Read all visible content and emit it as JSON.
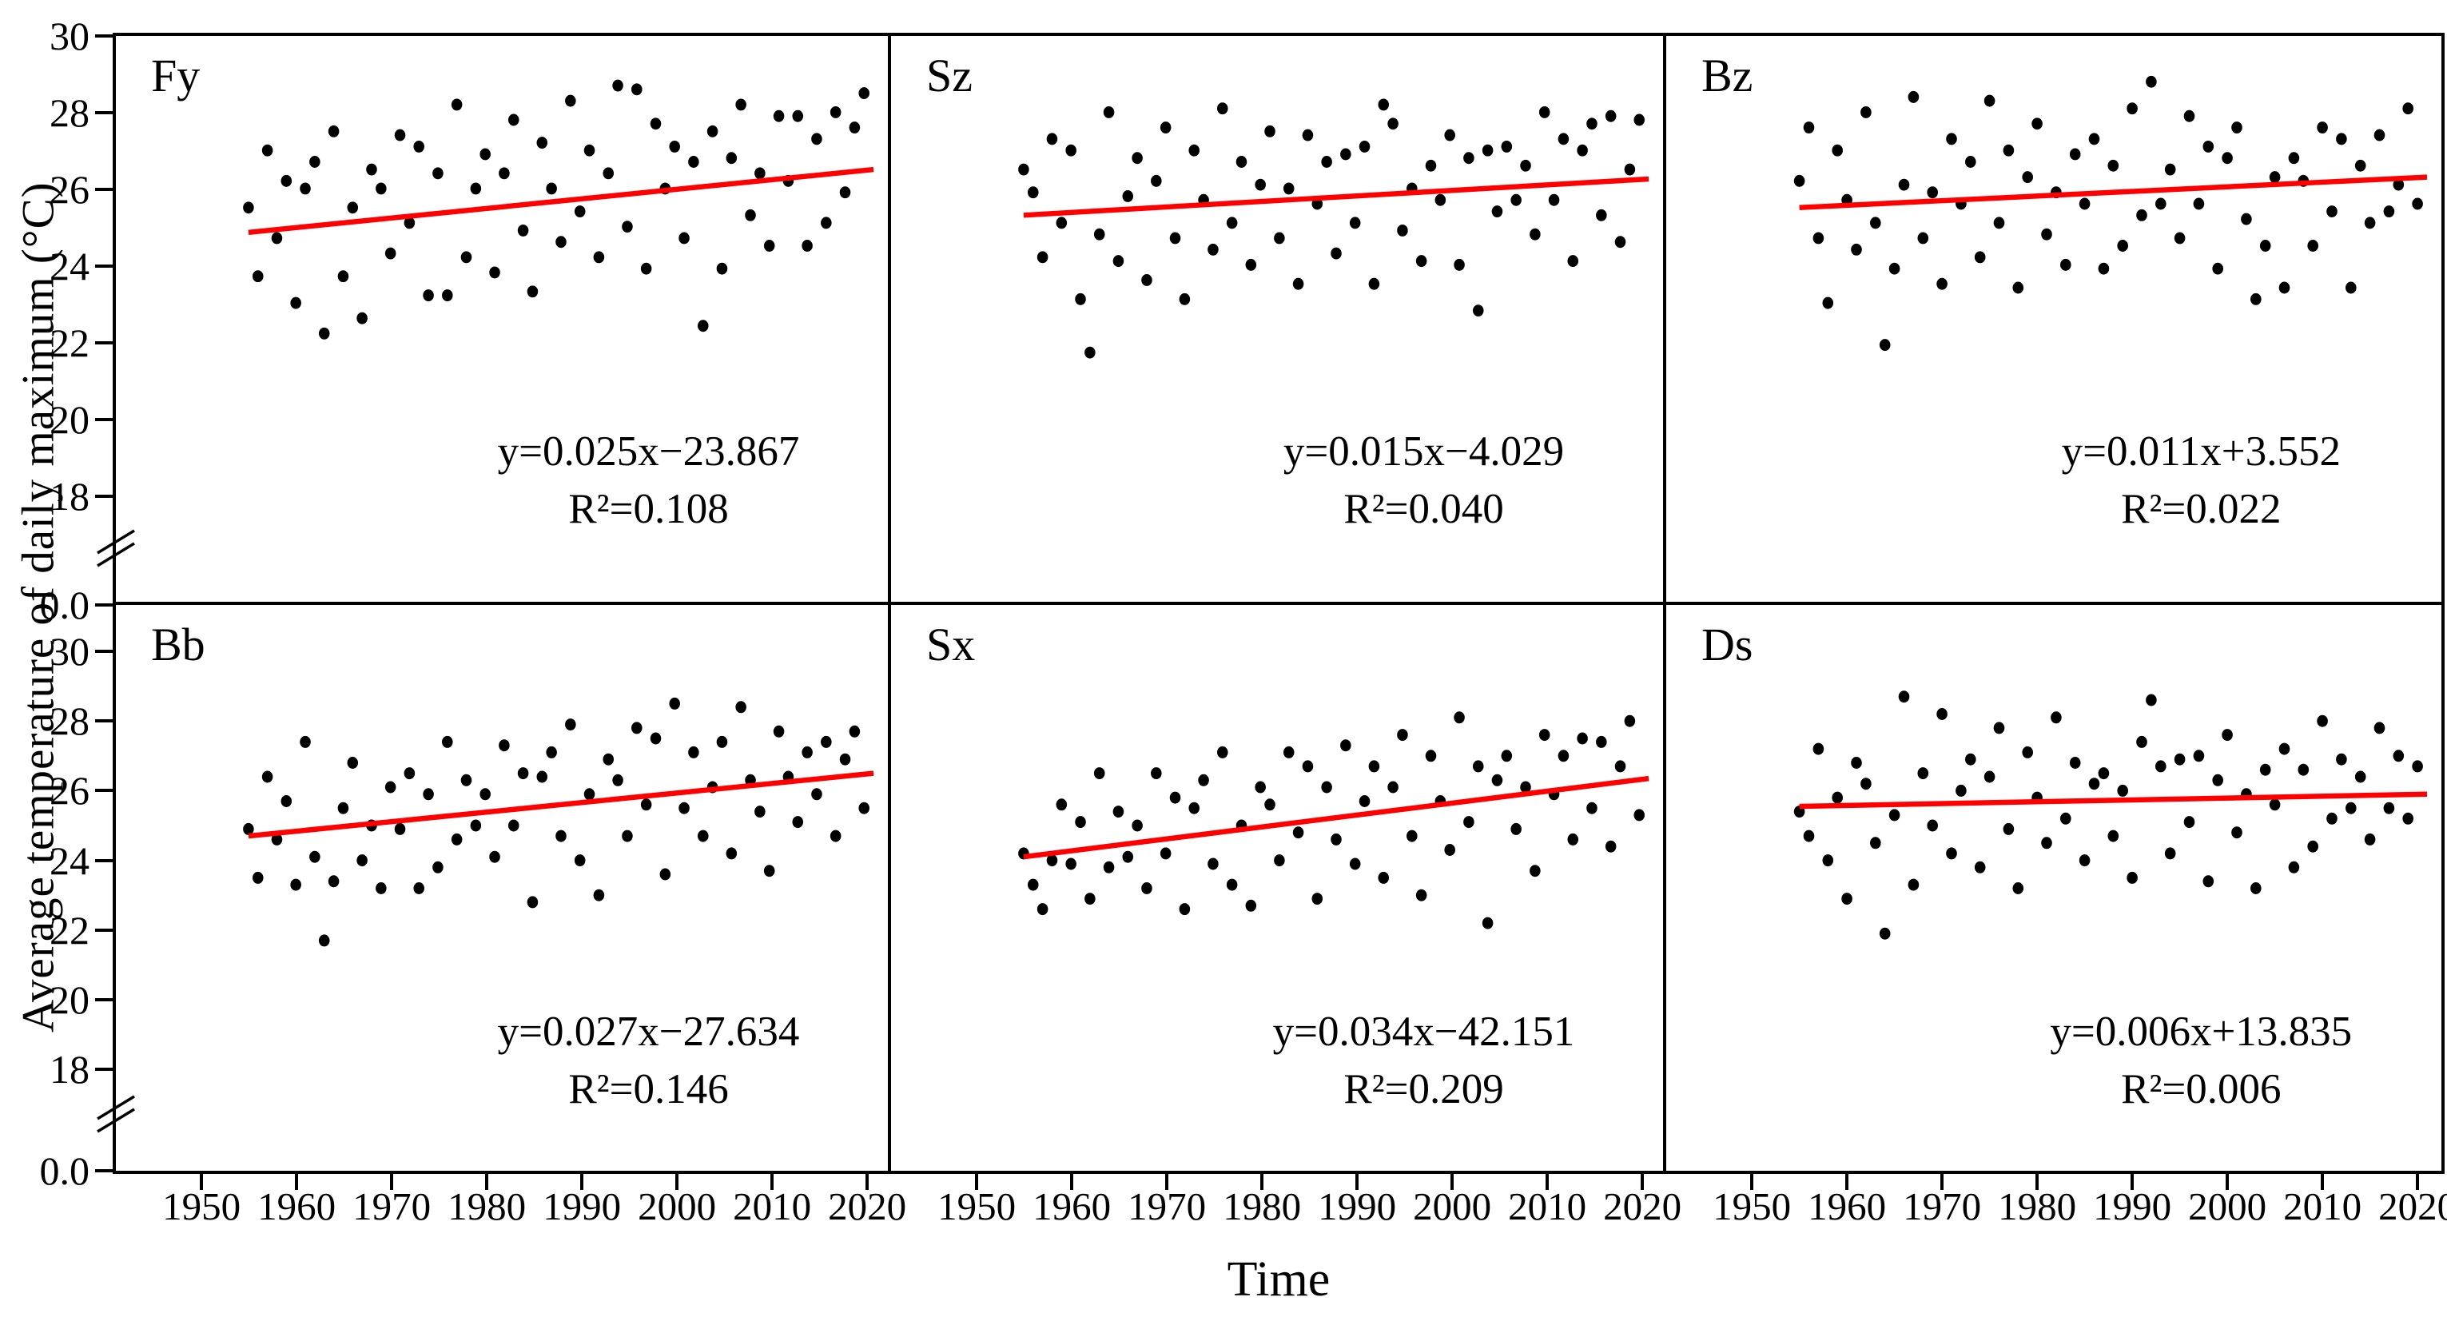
{
  "figure": {
    "y_axis_title": "Average temperature of daily maximum (°C)",
    "x_axis_title": "Time",
    "y_tick_labels": [
      "30",
      "28",
      "26",
      "24",
      "22",
      "20",
      "18"
    ],
    "y_base_label": "0.0",
    "x_tick_labels": [
      "1950",
      "1960",
      "1970",
      "1980",
      "1990",
      "2000",
      "2010",
      "2020"
    ],
    "colors": {
      "trend_line": "#ff0000",
      "data_points": "#000000",
      "axis": "#000000",
      "background": "#ffffff"
    }
  },
  "chart_data": {
    "type": "scatter",
    "layout": "2x3 panel grid, shared axes",
    "xlabel": "Time",
    "ylabel": "Average temperature of daily maximum (°C)",
    "x_ticks": [
      1950,
      1960,
      1970,
      1980,
      1990,
      2000,
      2010,
      2020
    ],
    "y_ticks": [
      30,
      28,
      26,
      24,
      22,
      20,
      18,
      0
    ],
    "y_axis_break": true,
    "y_display_range": [
      18,
      30
    ],
    "x_range": [
      1941,
      2022.5
    ],
    "years": [
      1955,
      1956,
      1957,
      1958,
      1959,
      1960,
      1961,
      1962,
      1963,
      1964,
      1965,
      1966,
      1967,
      1968,
      1969,
      1970,
      1971,
      1972,
      1973,
      1974,
      1975,
      1976,
      1977,
      1978,
      1979,
      1980,
      1981,
      1982,
      1983,
      1984,
      1985,
      1986,
      1987,
      1988,
      1989,
      1990,
      1991,
      1992,
      1993,
      1994,
      1995,
      1996,
      1997,
      1998,
      1999,
      2000,
      2001,
      2002,
      2003,
      2004,
      2005,
      2006,
      2007,
      2008,
      2009,
      2010,
      2011,
      2012,
      2013,
      2014,
      2015,
      2016,
      2017,
      2018,
      2019,
      2020
    ],
    "panels": [
      {
        "label": "Fy",
        "equation": "y=0.025x−23.867",
        "r2": "R²=0.108",
        "slope": 0.025,
        "intercept": -23.867,
        "r2_value": 0.108,
        "trend": {
          "x1": 1955,
          "y1": 24.85,
          "x2": 2021,
          "y2": 26.5
        },
        "values": [
          25.5,
          23.7,
          27.0,
          24.7,
          26.2,
          23.0,
          26.0,
          26.7,
          22.2,
          27.5,
          23.7,
          25.5,
          22.6,
          26.5,
          26.0,
          24.3,
          27.4,
          25.1,
          27.1,
          23.2,
          26.4,
          23.2,
          28.2,
          24.2,
          26.0,
          26.9,
          23.8,
          26.4,
          27.8,
          24.9,
          23.3,
          27.2,
          26.0,
          24.6,
          28.3,
          25.4,
          27.0,
          24.2,
          26.4,
          28.7,
          25.0,
          28.6,
          23.9,
          27.7,
          26.0,
          27.1,
          24.7,
          26.7,
          22.4,
          27.5,
          23.9,
          26.8,
          28.2,
          25.3,
          26.4,
          24.5,
          27.9,
          26.2,
          27.9,
          24.5,
          27.3,
          25.1,
          28.0,
          25.9,
          27.6,
          28.5
        ]
      },
      {
        "label": "Sz",
        "equation": "y=0.015x−4.029",
        "r2": "R²=0.040",
        "slope": 0.015,
        "intercept": -4.029,
        "r2_value": 0.04,
        "trend": {
          "x1": 1955,
          "y1": 25.3,
          "x2": 2021,
          "y2": 26.25
        },
        "values": [
          26.5,
          25.9,
          24.2,
          27.3,
          25.1,
          27.0,
          23.1,
          21.7,
          24.8,
          28.0,
          24.1,
          25.8,
          26.8,
          23.6,
          26.2,
          27.6,
          24.7,
          23.1,
          27.0,
          25.7,
          24.4,
          28.1,
          25.1,
          26.7,
          24.0,
          26.1,
          27.5,
          24.7,
          26.0,
          23.5,
          27.4,
          25.6,
          26.7,
          24.3,
          26.9,
          25.1,
          27.1,
          23.5,
          28.2,
          27.7,
          24.9,
          26.0,
          24.1,
          26.6,
          25.7,
          27.4,
          24.0,
          26.8,
          22.8,
          27.0,
          25.4,
          27.1,
          25.7,
          26.6,
          24.8,
          28.0,
          25.7,
          27.3,
          24.1,
          27.0,
          27.7,
          25.3,
          27.9,
          24.6,
          26.5,
          27.8
        ]
      },
      {
        "label": "Bz",
        "equation": "y=0.011x+3.552",
        "r2": "R²=0.022",
        "slope": 0.011,
        "intercept": 3.552,
        "r2_value": 0.022,
        "trend": {
          "x1": 1955,
          "y1": 25.5,
          "x2": 2021,
          "y2": 26.3
        },
        "values": [
          26.2,
          27.6,
          24.7,
          23.0,
          27.0,
          25.7,
          24.4,
          28.0,
          25.1,
          21.9,
          23.9,
          26.1,
          28.4,
          24.7,
          25.9,
          23.5,
          27.3,
          25.6,
          26.7,
          24.2,
          28.3,
          25.1,
          27.0,
          23.4,
          26.3,
          27.7,
          24.8,
          25.9,
          24.0,
          26.9,
          25.6,
          27.3,
          23.9,
          26.6,
          24.5,
          28.1,
          25.3,
          28.8,
          25.6,
          26.5,
          24.7,
          27.9,
          25.6,
          27.1,
          23.9,
          26.8,
          27.6,
          25.2,
          23.1,
          24.5,
          26.3,
          23.4,
          26.8,
          26.2,
          24.5,
          27.6,
          25.4,
          27.3,
          23.4,
          26.6,
          25.1,
          27.4,
          25.4,
          26.1,
          28.1,
          25.6
        ]
      },
      {
        "label": "Bb",
        "equation": "y=0.027x−27.634",
        "r2": "R²=0.146",
        "slope": 0.027,
        "intercept": -27.634,
        "r2_value": 0.146,
        "trend": {
          "x1": 1955,
          "y1": 24.7,
          "x2": 2021,
          "y2": 26.5
        },
        "values": [
          24.9,
          23.5,
          26.4,
          24.6,
          25.7,
          23.3,
          27.4,
          24.1,
          21.7,
          23.4,
          25.5,
          26.8,
          24.0,
          25.0,
          23.2,
          26.1,
          24.9,
          26.5,
          23.2,
          25.9,
          23.8,
          27.4,
          24.6,
          26.3,
          25.0,
          25.9,
          24.1,
          27.3,
          25.0,
          26.5,
          22.8,
          26.4,
          27.1,
          24.7,
          27.9,
          24.0,
          25.9,
          23.0,
          26.9,
          26.3,
          24.7,
          27.8,
          25.6,
          27.5,
          23.6,
          28.5,
          25.5,
          27.1,
          24.7,
          26.1,
          27.4,
          24.2,
          28.4,
          26.3,
          25.4,
          23.7,
          27.7,
          26.4,
          25.1,
          27.1,
          25.9,
          27.4,
          24.7,
          26.9,
          27.7,
          25.5
        ]
      },
      {
        "label": "Sx",
        "equation": "y=0.034x−42.151",
        "r2": "R²=0.209",
        "slope": 0.034,
        "intercept": -42.151,
        "r2_value": 0.209,
        "trend": {
          "x1": 1955,
          "y1": 24.1,
          "x2": 2021,
          "y2": 26.35
        },
        "values": [
          24.2,
          23.3,
          22.6,
          24.0,
          25.6,
          23.9,
          25.1,
          22.9,
          26.5,
          23.8,
          25.4,
          24.1,
          25.0,
          23.2,
          26.5,
          24.2,
          25.8,
          22.6,
          25.5,
          26.3,
          23.9,
          27.1,
          23.3,
          25.0,
          22.7,
          26.1,
          25.6,
          24.0,
          27.1,
          24.8,
          26.7,
          22.9,
          26.1,
          24.6,
          27.3,
          23.9,
          25.7,
          26.7,
          23.5,
          26.1,
          27.6,
          24.7,
          23.0,
          27.0,
          25.7,
          24.3,
          28.1,
          25.1,
          26.7,
          22.2,
          26.3,
          27.0,
          24.9,
          26.1,
          23.7,
          27.6,
          25.9,
          27.0,
          24.6,
          27.5,
          25.5,
          27.4,
          24.4,
          26.7,
          28.0,
          25.3
        ]
      },
      {
        "label": "Ds",
        "equation": "y=0.006x+13.835",
        "r2": "R²=0.006",
        "slope": 0.006,
        "intercept": 13.835,
        "r2_value": 0.006,
        "trend": {
          "x1": 1955,
          "y1": 25.55,
          "x2": 2021,
          "y2": 25.9
        },
        "values": [
          25.4,
          24.7,
          27.2,
          24.0,
          25.8,
          22.9,
          26.8,
          26.2,
          24.5,
          21.9,
          25.3,
          28.7,
          23.3,
          26.5,
          25.0,
          28.2,
          24.2,
          26.0,
          26.9,
          23.8,
          26.4,
          27.8,
          24.9,
          23.2,
          27.1,
          25.8,
          24.5,
          28.1,
          25.2,
          26.8,
          24.0,
          26.2,
          26.5,
          24.7,
          26.0,
          23.5,
          27.4,
          28.6,
          26.7,
          24.2,
          26.9,
          25.1,
          27.0,
          23.4,
          26.3,
          27.6,
          24.8,
          25.9,
          23.2,
          26.6,
          25.6,
          27.2,
          23.8,
          26.6,
          24.4,
          28.0,
          25.2,
          26.9,
          25.5,
          26.4,
          24.6,
          27.8,
          25.5,
          27.0,
          25.2,
          26.7
        ]
      }
    ]
  }
}
